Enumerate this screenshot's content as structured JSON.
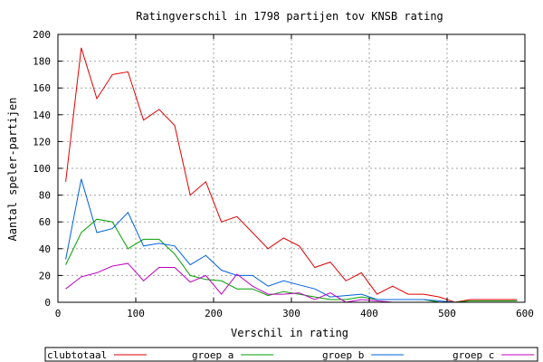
{
  "chart_data": {
    "type": "line",
    "title": "Ratingverschil in 1798 partijen tov KNSB rating",
    "xlabel": "Verschil in rating",
    "ylabel": "Aantal speler-partijen",
    "xlim": [
      0,
      600
    ],
    "ylim": [
      0,
      200
    ],
    "x_ticks": [
      0,
      100,
      200,
      300,
      400,
      500,
      600
    ],
    "y_ticks": [
      0,
      20,
      40,
      60,
      80,
      100,
      120,
      140,
      160,
      180,
      200
    ],
    "grid": true,
    "legend_position": "bottom",
    "series": [
      {
        "name": "clubtotaal",
        "color": "#e00000",
        "x": [
          10,
          30,
          50,
          70,
          90,
          110,
          130,
          150,
          170,
          190,
          210,
          230,
          250,
          270,
          290,
          310,
          330,
          350,
          370,
          390,
          410,
          430,
          450,
          470,
          490,
          510,
          530,
          550,
          570,
          590
        ],
        "y": [
          90,
          190,
          152,
          170,
          172,
          136,
          144,
          132,
          80,
          90,
          60,
          64,
          52,
          40,
          48,
          42,
          26,
          30,
          16,
          22,
          6,
          12,
          6,
          6,
          4,
          0,
          2,
          2,
          2,
          2
        ]
      },
      {
        "name": "groep a",
        "color": "#00a000",
        "x": [
          10,
          30,
          50,
          70,
          90,
          110,
          130,
          150,
          170,
          190,
          210,
          230,
          250,
          270,
          290,
          310,
          330,
          350,
          370,
          390,
          410,
          430,
          450,
          470,
          490,
          510,
          530,
          550,
          570,
          590
        ],
        "y": [
          28,
          52,
          62,
          60,
          40,
          47,
          47,
          36,
          20,
          17,
          16,
          10,
          10,
          5,
          8,
          6,
          4,
          2,
          2,
          4,
          2,
          2,
          2,
          2,
          0,
          0,
          1,
          1,
          1,
          1
        ]
      },
      {
        "name": "groep b",
        "color": "#0060e0",
        "x": [
          10,
          30,
          50,
          70,
          90,
          110,
          130,
          150,
          170,
          190,
          210,
          230,
          250,
          270,
          290,
          310,
          330,
          350,
          370,
          390,
          410,
          430,
          450,
          470,
          490,
          510,
          530,
          550,
          570,
          590
        ],
        "y": [
          32,
          92,
          52,
          55,
          67,
          42,
          44,
          42,
          28,
          35,
          24,
          20,
          20,
          12,
          16,
          13,
          10,
          4,
          5,
          6,
          2,
          2,
          2,
          2,
          1,
          0,
          0,
          0,
          0,
          0
        ]
      },
      {
        "name": "groep c",
        "color": "#c000c0",
        "x": [
          10,
          30,
          50,
          70,
          90,
          110,
          130,
          150,
          170,
          190,
          210,
          230,
          250,
          270,
          290,
          310,
          330,
          350,
          370,
          390,
          410,
          430,
          450,
          470,
          490,
          510,
          530,
          550,
          570,
          590
        ],
        "y": [
          10,
          19,
          22,
          27,
          29,
          16,
          26,
          26,
          15,
          20,
          6,
          21,
          12,
          6,
          6,
          7,
          2,
          7,
          0,
          2,
          1,
          0,
          0,
          0,
          0,
          0,
          0,
          0,
          0,
          0
        ]
      }
    ]
  }
}
